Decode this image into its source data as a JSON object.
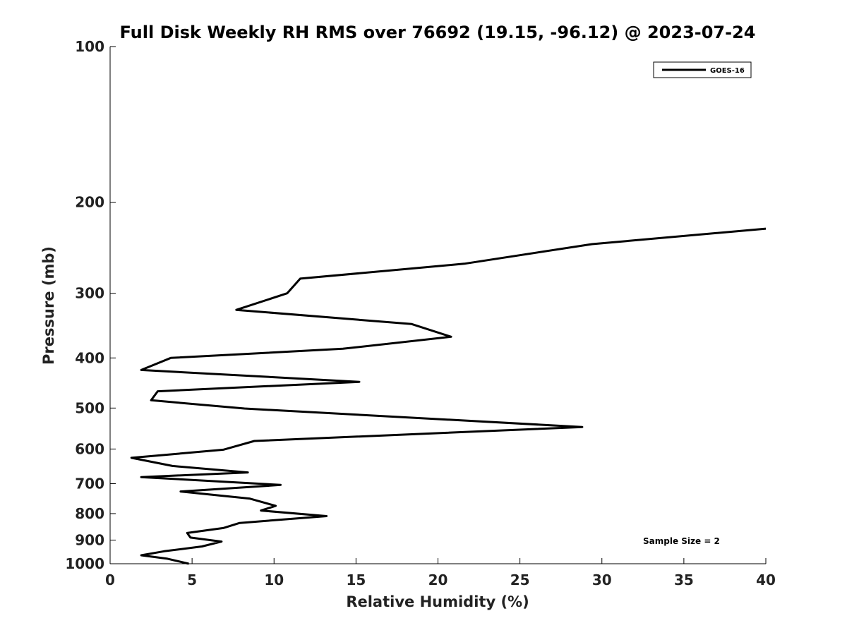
{
  "chart_data": {
    "type": "line",
    "title": "Full Disk Weekly RH RMS over 76692 (19.15, -96.12) @ 2023-07-24",
    "xlabel": "Relative Humidity (%)",
    "ylabel": "Pressure (mb)",
    "xlim": [
      0,
      40
    ],
    "ylim": [
      100,
      1000
    ],
    "y_scale": "log",
    "y_inverted": true,
    "grid": false,
    "legend_position": "top-right",
    "x_ticks": [
      "0",
      "5",
      "10",
      "15",
      "20",
      "25",
      "30",
      "35",
      "40"
    ],
    "y_ticks": [
      "100",
      "200",
      "300",
      "400",
      "500",
      "600",
      "700",
      "800",
      "900",
      "1000"
    ],
    "series": [
      {
        "name": "GOES-16",
        "color": "#000000",
        "points": [
          [
            40.0,
            225
          ],
          [
            29.4,
            241
          ],
          [
            21.6,
            263
          ],
          [
            11.6,
            281
          ],
          [
            10.8,
            300
          ],
          [
            7.7,
            323
          ],
          [
            18.4,
            344
          ],
          [
            20.8,
            364
          ],
          [
            14.2,
            384
          ],
          [
            3.7,
            400
          ],
          [
            1.9,
            422
          ],
          [
            15.2,
            445
          ],
          [
            2.9,
            464
          ],
          [
            2.5,
            483
          ],
          [
            8.2,
            501
          ],
          [
            28.8,
            544
          ],
          [
            8.8,
            579
          ],
          [
            6.9,
            602
          ],
          [
            1.3,
            624
          ],
          [
            3.8,
            647
          ],
          [
            8.4,
            666
          ],
          [
            1.9,
            680
          ],
          [
            10.4,
            704
          ],
          [
            4.3,
            725
          ],
          [
            8.5,
            748
          ],
          [
            10.1,
            773
          ],
          [
            9.2,
            789
          ],
          [
            13.2,
            809
          ],
          [
            7.9,
            834
          ],
          [
            6.9,
            853
          ],
          [
            4.7,
            872
          ],
          [
            4.9,
            890
          ],
          [
            6.8,
            906
          ],
          [
            5.6,
            926
          ],
          [
            3.3,
            946
          ],
          [
            1.9,
            963
          ],
          [
            3.5,
            978
          ],
          [
            4.8,
            1000
          ]
        ]
      }
    ],
    "annotations": [
      "Sample Size = 2"
    ]
  }
}
